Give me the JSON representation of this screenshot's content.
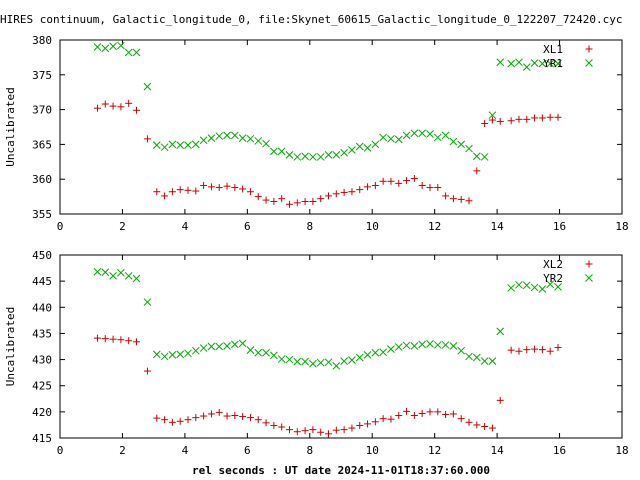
{
  "page": {
    "title": "HIRES continuum, Galactic_longitude_0, file:Skynet_60615_Galactic_longitude_0_122207_72420.cyc"
  },
  "colors": {
    "red_series": "#cc0000",
    "green_series": "#00aa00",
    "axis": "#000000"
  },
  "chart_data": [
    {
      "type": "scatter",
      "title": "",
      "xlabel": "",
      "ylabel": "Uncalibrated",
      "xlim": [
        0,
        18
      ],
      "ylim": [
        355,
        380
      ],
      "xticks": [
        0,
        2,
        4,
        6,
        8,
        10,
        12,
        14,
        16,
        18
      ],
      "yticks": [
        355,
        360,
        365,
        370,
        375,
        380
      ],
      "grid": false,
      "legend_position": "top-right",
      "series": [
        {
          "name": "XL1",
          "marker": "plus",
          "color": "#cc0000",
          "x": [
            1.2,
            1.45,
            1.7,
            1.95,
            2.2,
            2.45,
            2.8,
            3.1,
            3.35,
            3.6,
            3.85,
            4.1,
            4.35,
            4.6,
            4.85,
            5.1,
            5.35,
            5.6,
            5.85,
            6.1,
            6.35,
            6.6,
            6.85,
            7.1,
            7.35,
            7.6,
            7.85,
            8.1,
            8.35,
            8.6,
            8.85,
            9.1,
            9.35,
            9.6,
            9.85,
            10.1,
            10.35,
            10.6,
            10.85,
            11.1,
            11.35,
            11.6,
            11.85,
            12.1,
            12.35,
            12.6,
            12.85,
            13.1,
            13.35,
            13.6,
            13.85,
            14.1,
            14.45,
            14.7,
            14.95,
            15.2,
            15.45,
            15.7,
            15.95
          ],
          "y": [
            370.2,
            370.8,
            370.5,
            370.4,
            370.9,
            369.9,
            365.8,
            358.2,
            357.6,
            358.2,
            358.5,
            358.4,
            358.3,
            359.1,
            358.9,
            358.8,
            359.0,
            358.8,
            358.6,
            358.2,
            357.5,
            357.0,
            356.8,
            357.2,
            356.4,
            356.6,
            356.8,
            356.8,
            357.2,
            357.6,
            357.9,
            358.1,
            358.2,
            358.5,
            358.9,
            359.1,
            359.7,
            359.7,
            359.4,
            359.8,
            360.1,
            359.1,
            358.8,
            358.8,
            357.6,
            357.2,
            357.1,
            356.9,
            361.2,
            368.0,
            368.5,
            368.3,
            368.4,
            368.6,
            368.6,
            368.8,
            368.8,
            368.9,
            368.9
          ],
          "y_note_unused": []
        },
        {
          "name": "YR1",
          "marker": "cross",
          "color": "#00aa00",
          "x": [
            1.2,
            1.45,
            1.7,
            1.95,
            2.2,
            2.45,
            2.8,
            3.1,
            3.35,
            3.6,
            3.85,
            4.1,
            4.35,
            4.6,
            4.85,
            5.1,
            5.35,
            5.6,
            5.85,
            6.1,
            6.35,
            6.6,
            6.85,
            7.1,
            7.35,
            7.6,
            7.85,
            8.1,
            8.35,
            8.6,
            8.85,
            9.1,
            9.35,
            9.6,
            9.85,
            10.1,
            10.35,
            10.6,
            10.85,
            11.1,
            11.35,
            11.6,
            11.85,
            12.1,
            12.35,
            12.6,
            12.85,
            13.1,
            13.35,
            13.6,
            13.85,
            14.1,
            14.45,
            14.7,
            14.95,
            15.2,
            15.45,
            15.7,
            15.95
          ],
          "y": [
            379.0,
            378.8,
            379.1,
            379.2,
            378.2,
            378.2,
            373.3,
            364.9,
            364.6,
            365.0,
            364.9,
            364.9,
            365.0,
            365.6,
            365.9,
            366.2,
            366.3,
            366.3,
            365.9,
            365.8,
            365.5,
            365.1,
            364.0,
            364.0,
            363.5,
            363.2,
            363.3,
            363.2,
            363.2,
            363.5,
            363.5,
            363.8,
            364.2,
            364.7,
            364.5,
            365.0,
            366.0,
            365.8,
            365.7,
            366.3,
            366.6,
            366.6,
            366.5,
            366.0,
            366.3,
            365.4,
            365.0,
            364.4,
            363.3,
            363.2,
            369.2,
            376.8,
            376.6,
            376.8,
            376.1,
            376.7,
            376.6,
            376.6,
            376.6
          ]
        }
      ]
    },
    {
      "type": "scatter",
      "title": "",
      "xlabel": "rel seconds : UT date 2024-11-01T18:37:60.000",
      "ylabel": "Uncalibrated",
      "xlim": [
        0,
        18
      ],
      "ylim": [
        415,
        450
      ],
      "xticks": [
        0,
        2,
        4,
        6,
        8,
        10,
        12,
        14,
        16,
        18
      ],
      "yticks": [
        415,
        420,
        425,
        430,
        435,
        440,
        445,
        450
      ],
      "grid": false,
      "legend_position": "top-right",
      "series": [
        {
          "name": "XL2",
          "marker": "plus",
          "color": "#cc0000",
          "x": [
            1.2,
            1.45,
            1.7,
            1.95,
            2.2,
            2.45,
            2.8,
            3.1,
            3.35,
            3.6,
            3.85,
            4.1,
            4.35,
            4.6,
            4.85,
            5.1,
            5.35,
            5.6,
            5.85,
            6.1,
            6.35,
            6.6,
            6.85,
            7.1,
            7.35,
            7.6,
            7.85,
            8.1,
            8.35,
            8.6,
            8.85,
            9.1,
            9.35,
            9.6,
            9.85,
            10.1,
            10.35,
            10.6,
            10.85,
            11.1,
            11.35,
            11.6,
            11.85,
            12.1,
            12.35,
            12.6,
            12.85,
            13.1,
            13.35,
            13.6,
            13.85,
            14.1,
            14.45,
            14.7,
            14.95,
            15.2,
            15.45,
            15.7,
            15.95
          ],
          "y": [
            434.1,
            434.0,
            433.9,
            433.8,
            433.6,
            433.4,
            427.8,
            418.8,
            418.5,
            418.0,
            418.2,
            418.5,
            418.9,
            419.2,
            419.6,
            419.9,
            419.2,
            419.3,
            419.1,
            418.9,
            418.5,
            417.9,
            417.4,
            417.1,
            416.6,
            416.2,
            416.4,
            416.6,
            416.1,
            415.8,
            416.5,
            416.6,
            416.9,
            417.4,
            417.7,
            418.1,
            418.7,
            418.6,
            419.3,
            420.1,
            419.3,
            419.7,
            420.0,
            420.0,
            419.5,
            419.6,
            418.7,
            418.0,
            417.5,
            417.2,
            416.9,
            422.2,
            431.8,
            431.6,
            431.9,
            432.0,
            431.9,
            431.6,
            432.3
          ]
        },
        {
          "name": "YR2",
          "marker": "cross",
          "color": "#00aa00",
          "x": [
            1.2,
            1.45,
            1.7,
            1.95,
            2.2,
            2.45,
            2.8,
            3.1,
            3.35,
            3.6,
            3.85,
            4.1,
            4.35,
            4.6,
            4.85,
            5.1,
            5.35,
            5.6,
            5.85,
            6.1,
            6.35,
            6.6,
            6.85,
            7.1,
            7.35,
            7.6,
            7.85,
            8.1,
            8.35,
            8.6,
            8.85,
            9.1,
            9.35,
            9.6,
            9.85,
            10.1,
            10.35,
            10.6,
            10.85,
            11.1,
            11.35,
            11.6,
            11.85,
            12.1,
            12.35,
            12.6,
            12.85,
            13.1,
            13.35,
            13.6,
            13.85,
            14.1,
            14.45,
            14.7,
            14.95,
            15.2,
            15.45,
            15.7,
            15.95
          ],
          "y": [
            446.8,
            446.7,
            446.0,
            446.6,
            446.0,
            445.5,
            441.0,
            431.0,
            430.6,
            430.9,
            431.0,
            431.2,
            431.7,
            432.2,
            432.5,
            432.5,
            432.6,
            432.9,
            433.1,
            431.8,
            431.3,
            431.3,
            430.8,
            430.1,
            430.0,
            429.6,
            429.6,
            429.2,
            429.4,
            429.5,
            428.8,
            429.7,
            429.9,
            430.4,
            430.9,
            431.3,
            431.4,
            432.0,
            432.4,
            432.7,
            432.6,
            432.9,
            433.0,
            432.8,
            432.8,
            432.6,
            431.7,
            430.6,
            430.4,
            429.7,
            429.7,
            435.4,
            443.7,
            444.3,
            444.2,
            443.8,
            443.5,
            444.4,
            443.9
          ]
        }
      ]
    }
  ]
}
